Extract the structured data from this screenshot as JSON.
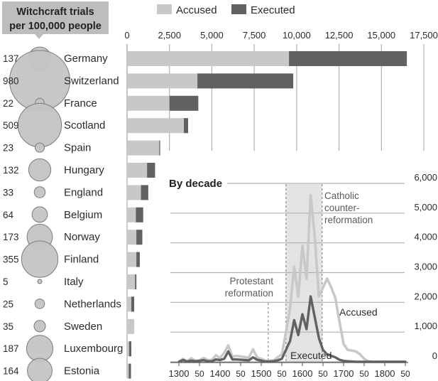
{
  "colors": {
    "accused": "#c8c8c8",
    "executed": "#616161",
    "bubble": "#c4c4c4",
    "bubble_stroke": "#7a7a7a",
    "grid": "#b0b0b0",
    "shade": "#e3e3e3",
    "header_box": "#bdbdbd",
    "text": "#2b2b2b"
  },
  "chart_data": [
    {
      "type": "bar",
      "title": "Witchcraft trials per 100,000 people",
      "legend": [
        "Accused",
        "Executed"
      ],
      "legend_position": "top",
      "xlim": [
        0,
        17500
      ],
      "ticks": [
        "0",
        "2,500",
        "5,000",
        "7,500",
        "10,000",
        "12,500",
        "15,000",
        "17,500"
      ],
      "tick_values": [
        0,
        2500,
        5000,
        7500,
        10000,
        12500,
        15000,
        17500
      ],
      "grid": true,
      "rows": [
        {
          "country": "Germany",
          "rate": 137,
          "rate_label": "137",
          "accused": 16500,
          "executed": 6950
        },
        {
          "country": "Switzerland",
          "rate": 980,
          "rate_label": "980",
          "accused": 9800,
          "executed": 5650
        },
        {
          "country": "France",
          "rate": 22,
          "rate_label": "22",
          "accused": 4200,
          "executed": 1700
        },
        {
          "country": "Scotland",
          "rate": 509,
          "rate_label": "509",
          "accused": 3600,
          "executed": 250
        },
        {
          "country": "Spain",
          "rate": 23,
          "rate_label": "23",
          "accused": 1950,
          "executed": 50
        },
        {
          "country": "Hungary",
          "rate": 132,
          "rate_label": "132",
          "accused": 1650,
          "executed": 470
        },
        {
          "country": "England",
          "rate": 33,
          "rate_label": "33",
          "accused": 1250,
          "executed": 430
        },
        {
          "country": "Belgium",
          "rate": 64,
          "rate_label": "64",
          "accused": 950,
          "executed": 430
        },
        {
          "country": "Norway",
          "rate": 173,
          "rate_label": "173",
          "accused": 900,
          "executed": 350
        },
        {
          "country": "Finland",
          "rate": 355,
          "rate_label": "355",
          "accused": 750,
          "executed": 200
        },
        {
          "country": "Italy",
          "rate": 5,
          "rate_label": "5",
          "accused": 550,
          "executed": 80
        },
        {
          "country": "Netherlands",
          "rate": 25,
          "rate_label": "25",
          "accused": 420,
          "executed": 170
        },
        {
          "country": "Sweden",
          "rate": 35,
          "rate_label": "35",
          "accused": 420,
          "executed": 0
        },
        {
          "country": "Luxembourg",
          "rate": 187,
          "rate_label": "187",
          "accused": 250,
          "executed": 130
        },
        {
          "country": "Estonia",
          "rate": 164,
          "rate_label": "164",
          "accused": 230,
          "executed": 130
        }
      ]
    },
    {
      "type": "line",
      "title": "By decade",
      "xlim": [
        1300,
        1850
      ],
      "ylim": [
        0,
        6000
      ],
      "x_ticks": [
        "1300",
        "50",
        "1400",
        "50",
        "1500",
        "50",
        "1600",
        "50",
        "1700",
        "50",
        "1800",
        "50"
      ],
      "x_tick_values": [
        1300,
        1350,
        1400,
        1450,
        1500,
        1550,
        1600,
        1650,
        1700,
        1750,
        1800,
        1850
      ],
      "y_ticks": [
        "0",
        "1,000",
        "2,000",
        "3,000",
        "4,000",
        "5,000",
        "6,000"
      ],
      "y_tick_values": [
        0,
        1000,
        2000,
        3000,
        4000,
        5000,
        6000
      ],
      "shaded_region": {
        "from": 1560,
        "to": 1648
      },
      "annotations": [
        {
          "text": "Protestant",
          "x": 1517
        },
        {
          "text": "reformation",
          "x": 1517
        },
        {
          "text": "Catholic",
          "x": 1648
        },
        {
          "text": "counter-",
          "x": 1648
        },
        {
          "text": "reformation",
          "x": 1648
        }
      ],
      "series": [
        {
          "name": "Accused",
          "x": [
            1300,
            1310,
            1320,
            1330,
            1340,
            1350,
            1360,
            1370,
            1380,
            1390,
            1400,
            1410,
            1420,
            1430,
            1440,
            1450,
            1460,
            1470,
            1480,
            1490,
            1500,
            1510,
            1520,
            1530,
            1540,
            1550,
            1560,
            1570,
            1580,
            1590,
            1600,
            1610,
            1620,
            1630,
            1640,
            1650,
            1660,
            1670,
            1680,
            1690,
            1700,
            1710,
            1720,
            1730,
            1740,
            1750,
            1760,
            1770,
            1780,
            1790,
            1800,
            1810,
            1820,
            1830,
            1840,
            1850
          ],
          "values": [
            0,
            100,
            20,
            120,
            30,
            50,
            130,
            60,
            60,
            220,
            130,
            300,
            550,
            170,
            200,
            180,
            160,
            140,
            420,
            150,
            100,
            40,
            30,
            50,
            150,
            250,
            1000,
            1800,
            3200,
            2200,
            3900,
            2800,
            5600,
            4200,
            2200,
            2500,
            2800,
            2500,
            2150,
            1350,
            600,
            400,
            380,
            350,
            250,
            100,
            20,
            0,
            0,
            0,
            0,
            0,
            0,
            0,
            0,
            0
          ]
        },
        {
          "name": "Executed",
          "x": [
            1300,
            1310,
            1320,
            1330,
            1340,
            1350,
            1360,
            1370,
            1380,
            1390,
            1400,
            1410,
            1420,
            1430,
            1440,
            1450,
            1460,
            1470,
            1480,
            1490,
            1500,
            1510,
            1520,
            1530,
            1540,
            1550,
            1560,
            1570,
            1580,
            1590,
            1600,
            1610,
            1620,
            1630,
            1640,
            1650,
            1660,
            1670,
            1680,
            1690,
            1700,
            1710,
            1720,
            1730,
            1740,
            1750,
            1760,
            1770,
            1780,
            1790,
            1800,
            1810,
            1820,
            1830,
            1840,
            1850
          ],
          "values": [
            0,
            60,
            10,
            40,
            20,
            30,
            60,
            20,
            20,
            80,
            60,
            100,
            350,
            80,
            80,
            70,
            60,
            50,
            150,
            70,
            40,
            10,
            10,
            20,
            50,
            100,
            400,
            700,
            1400,
            900,
            1600,
            1100,
            2200,
            1500,
            800,
            400,
            250,
            200,
            150,
            70,
            30,
            20,
            10,
            0,
            0,
            0,
            0,
            0,
            0,
            0,
            0,
            0,
            0,
            0,
            0,
            0
          ]
        }
      ]
    }
  ]
}
